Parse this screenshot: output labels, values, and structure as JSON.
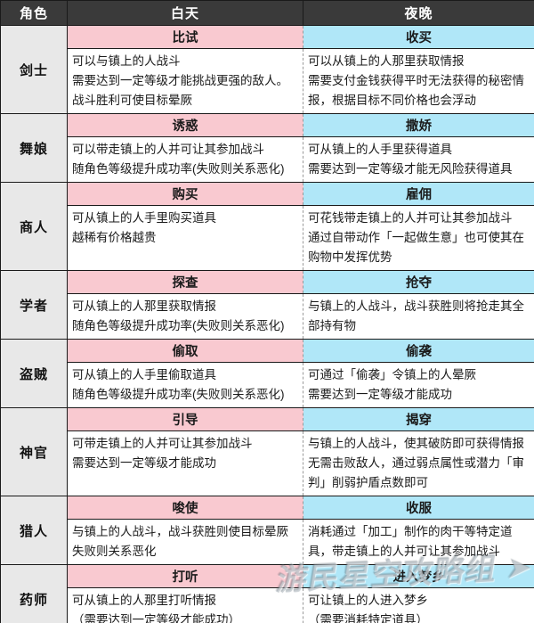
{
  "colors": {
    "header_bg": "#3a3a3a",
    "role_bg": "#e8e8e8",
    "day_skill_bg": "#f9c9d0",
    "night_skill_bg": "#b0e7f8"
  },
  "watermark": "游民星空攻略组 ➤",
  "table": {
    "headers": {
      "role": "角色",
      "day": "白天",
      "night": "夜晚"
    },
    "rows": [
      {
        "role": "剑士",
        "day_skill": "比试",
        "day_desc": [
          "可以与镇上的人战斗",
          "需要达到一定等级才能挑战更强的敌人。",
          "战斗胜利可使目标晕厥"
        ],
        "night_skill": "收买",
        "night_desc": [
          "可以从镇上的人那里获取情报",
          "需要支付金钱获得平时无法获得的秘密情报，根据目标不同价格也会浮动"
        ]
      },
      {
        "role": "舞娘",
        "day_skill": "诱惑",
        "day_desc": [
          "可以带走镇上的人并可让其参加战斗",
          "随角色等级提升成功率(失败则关系恶化)"
        ],
        "night_skill": "撒娇",
        "night_desc": [
          "可从镇上的人手里获得道具",
          "需要达到一定等级才能无风险获得道具"
        ]
      },
      {
        "role": "商人",
        "day_skill": "购买",
        "day_desc": [
          "可从镇上的人手里购买道具",
          "越稀有价格越贵"
        ],
        "night_skill": "雇佣",
        "night_desc": [
          "可花钱带走镇上的人并可让其参加战斗",
          "通过自带动作「一起做生意」也可使其在购物中发挥优势"
        ]
      },
      {
        "role": "学者",
        "day_skill": "探查",
        "day_desc": [
          "可从镇上的人那里获取情报",
          "随角色等级提升成功率(失败则关系恶化)"
        ],
        "night_skill": "抢夺",
        "night_desc": [
          "与镇上的人战斗，战斗获胜则将抢走其全部持有物"
        ]
      },
      {
        "role": "盗贼",
        "day_skill": "偷取",
        "day_desc": [
          "可从镇上的人手里偷取道具",
          "随角色等级提升成功率(失败则关系恶化)"
        ],
        "night_skill": "偷袭",
        "night_desc": [
          "可通过「偷袭」令镇上的人晕厥",
          "需要达到一定等级才能成功"
        ]
      },
      {
        "role": "神官",
        "day_skill": "引导",
        "day_desc": [
          "可带走镇上的人并可让其参加战斗",
          "需要达到一定等级才能成功"
        ],
        "night_skill": "揭穿",
        "night_desc": [
          "与镇上的人战斗，使其破防即可获得情报",
          "无需击败敌人，通过弱点属性或潜力「审判」削弱护盾点数即可"
        ]
      },
      {
        "role": "猎人",
        "day_skill": "唆使",
        "day_desc": [
          "与镇上的人战斗，战斗获胜则使目标晕厥",
          "失败则关系恶化"
        ],
        "night_skill": "收服",
        "night_desc": [
          "消耗通过「加工」制作的肉干等特定道具，带走镇上的人并可让其参加战斗"
        ]
      },
      {
        "role": "药师",
        "day_skill": "打听",
        "day_desc": [
          "可从镇上的人那里打听情报",
          "（需要达到一定等级才能成功）"
        ],
        "night_skill": "进入梦乡",
        "night_desc": [
          "可让镇上的人进入梦乡",
          "（需要消耗特定道具）"
        ]
      }
    ]
  }
}
